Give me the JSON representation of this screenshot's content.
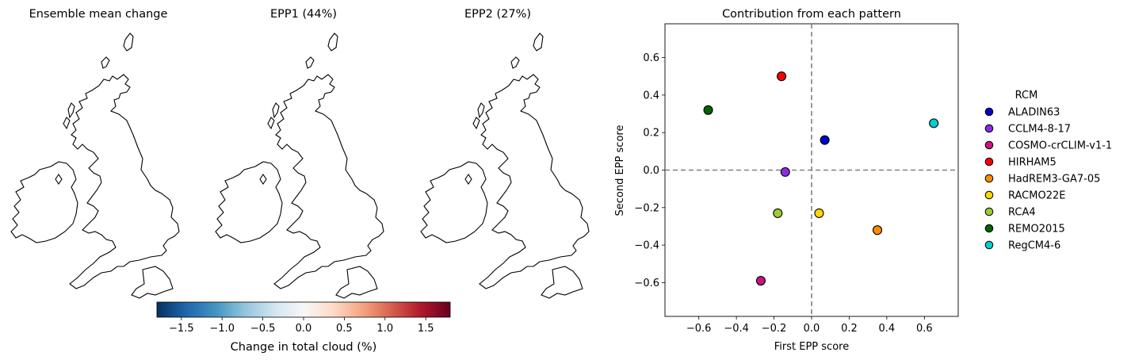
{
  "maps": [
    {
      "title": "Ensemble mean change",
      "pattern": "mean"
    },
    {
      "title": "EPP1 (44%)",
      "pattern": "epp1"
    },
    {
      "title": "EPP2 (27%)",
      "pattern": "epp2"
    }
  ],
  "colorbar": {
    "label": "Change in total cloud (%)",
    "min": -1.8,
    "max": 1.8,
    "ticks": [
      -1.5,
      -1.0,
      -0.5,
      0.0,
      0.5,
      1.0,
      1.5
    ],
    "tick_labels": [
      "−1.5",
      "−1.0",
      "−0.5",
      "0.0",
      "0.5",
      "1.0",
      "1.5"
    ],
    "colormap": "RdBu_r"
  },
  "chart_data": {
    "type": "scatter",
    "title": "Contribution from each pattern",
    "xlabel": "First EPP score",
    "ylabel": "Second EPP score",
    "xlim": [
      -0.78,
      0.78
    ],
    "ylim": [
      -0.78,
      0.78
    ],
    "xticks": [
      -0.6,
      -0.4,
      -0.2,
      0.0,
      0.2,
      0.4,
      0.6
    ],
    "xtick_labels": [
      "−0.6",
      "−0.4",
      "−0.2",
      "0.0",
      "0.2",
      "0.4",
      "0.6"
    ],
    "yticks": [
      -0.6,
      -0.4,
      -0.2,
      0.0,
      0.2,
      0.4,
      0.6
    ],
    "ytick_labels": [
      "−0.6",
      "−0.4",
      "−0.2",
      "0.0",
      "0.2",
      "0.4",
      "0.6"
    ],
    "reference_lines": {
      "x": 0.0,
      "y": 0.0,
      "style": "dashed",
      "color": "#808080"
    },
    "legend_title": "RCM",
    "legend_position": "right",
    "series": [
      {
        "name": "ALADIN63",
        "x": 0.07,
        "y": 0.16,
        "color": "#0000cd"
      },
      {
        "name": "CCLM4-8-17",
        "x": -0.14,
        "y": -0.01,
        "color": "#8a2be2"
      },
      {
        "name": "COSMO-crCLIM-v1-1",
        "x": -0.27,
        "y": -0.59,
        "color": "#c71585"
      },
      {
        "name": "HIRHAM5",
        "x": -0.16,
        "y": 0.5,
        "color": "#ff0000"
      },
      {
        "name": "HadREM3-GA7-05",
        "x": 0.35,
        "y": -0.32,
        "color": "#ff8c00"
      },
      {
        "name": "RACMO22E",
        "x": 0.04,
        "y": -0.23,
        "color": "#ffd700"
      },
      {
        "name": "RCA4",
        "x": -0.18,
        "y": -0.23,
        "color": "#9acd32"
      },
      {
        "name": "REMO2015",
        "x": -0.55,
        "y": 0.32,
        "color": "#006400"
      },
      {
        "name": "RegCM4-6",
        "x": 0.65,
        "y": 0.25,
        "color": "#00ced1"
      }
    ]
  }
}
